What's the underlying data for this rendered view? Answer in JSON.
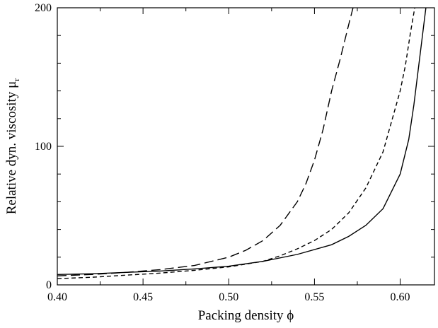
{
  "chart_data": {
    "type": "line",
    "title": "",
    "xlabel": "Packing density ϕ",
    "ylabel_main": "Relative dyn. viscosity μ",
    "ylabel_sub": "r",
    "xlim": [
      0.4,
      0.62
    ],
    "ylim": [
      0,
      200
    ],
    "x_ticks": [
      0.4,
      0.45,
      0.5,
      0.55,
      0.6
    ],
    "x_tick_labels": [
      "0.40",
      "0.45",
      "0.50",
      "0.55",
      "0.60"
    ],
    "x_minor_ticks": [
      0.425,
      0.475,
      0.525,
      0.575
    ],
    "y_ticks": [
      0,
      100,
      200
    ],
    "y_tick_labels": [
      "0",
      "100",
      "200"
    ],
    "y_minor_ticks": [
      20,
      40,
      60,
      80,
      120,
      140,
      160,
      180
    ],
    "grid": false,
    "legend": "none",
    "series": [
      {
        "style": "long-dash",
        "color": "#000000",
        "x": [
          0.4,
          0.42,
          0.44,
          0.46,
          0.48,
          0.5,
          0.51,
          0.52,
          0.53,
          0.54,
          0.545,
          0.55,
          0.555,
          0.56,
          0.565,
          0.568,
          0.57,
          0.5725
        ],
        "y": [
          6.5,
          7.5,
          9,
          11,
          14,
          20,
          25,
          32,
          43,
          60,
          73,
          90,
          112,
          140,
          163,
          178,
          188,
          200
        ]
      },
      {
        "style": "short-dash",
        "color": "#000000",
        "x": [
          0.4,
          0.42,
          0.44,
          0.46,
          0.48,
          0.5,
          0.52,
          0.53,
          0.54,
          0.55,
          0.56,
          0.57,
          0.58,
          0.59,
          0.595,
          0.6,
          0.603,
          0.606,
          0.6085
        ],
        "y": [
          4.5,
          5.5,
          7,
          8.5,
          10.5,
          13,
          17,
          21,
          26,
          32,
          40,
          52,
          70,
          96,
          118,
          140,
          158,
          182,
          200
        ]
      },
      {
        "style": "solid",
        "color": "#000000",
        "x": [
          0.4,
          0.42,
          0.44,
          0.46,
          0.48,
          0.5,
          0.52,
          0.54,
          0.56,
          0.57,
          0.58,
          0.59,
          0.6,
          0.605,
          0.608,
          0.61,
          0.612,
          0.614,
          0.615
        ],
        "y": [
          7.5,
          8,
          9,
          10,
          11.5,
          13.5,
          17,
          22,
          29,
          35,
          43,
          55,
          80,
          105,
          130,
          150,
          170,
          190,
          200
        ]
      }
    ]
  }
}
